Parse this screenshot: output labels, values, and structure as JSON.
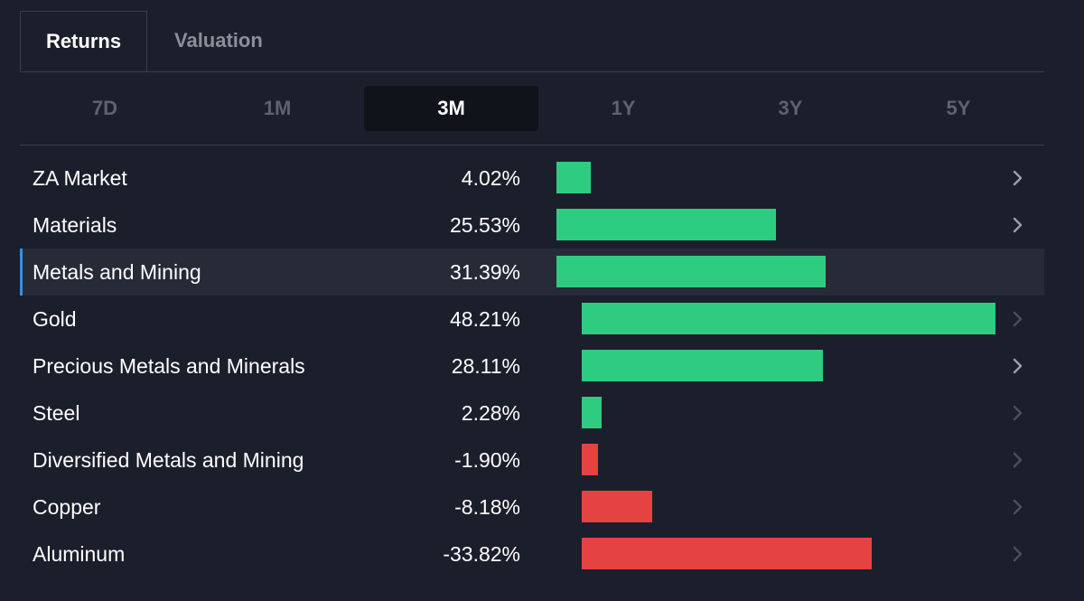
{
  "tabs": [
    {
      "label": "Returns",
      "active": true
    },
    {
      "label": "Valuation",
      "active": false
    }
  ],
  "periods": [
    {
      "label": "7D",
      "active": false
    },
    {
      "label": "1M",
      "active": false
    },
    {
      "label": "3M",
      "active": true
    },
    {
      "label": "1Y",
      "active": false
    },
    {
      "label": "3Y",
      "active": false
    },
    {
      "label": "5Y",
      "active": false
    }
  ],
  "colors": {
    "positive": "#2ecc80",
    "negative": "#e54242",
    "highlight_marker": "#3f8ed8",
    "chevron_bright": "#9aa0aa",
    "chevron_dim": "#4a4f5a"
  },
  "chart_data": {
    "type": "bar",
    "title": "",
    "categories": [
      "ZA Market",
      "Materials",
      "Metals and Mining",
      "Gold",
      "Precious Metals and Minerals",
      "Steel",
      "Diversified Metals and Mining",
      "Copper",
      "Aluminum"
    ],
    "values": [
      4.02,
      25.53,
      31.39,
      48.21,
      28.11,
      2.28,
      -1.9,
      -8.18,
      -33.82
    ],
    "value_labels": [
      "4.02%",
      "25.53%",
      "31.39%",
      "48.21%",
      "28.11%",
      "2.28%",
      "-1.90%",
      "-8.18%",
      "-33.82%"
    ],
    "level": [
      0,
      0,
      0,
      1,
      1,
      1,
      1,
      1,
      1
    ],
    "highlighted": [
      false,
      false,
      true,
      false,
      false,
      false,
      false,
      false,
      false
    ],
    "chevron": [
      "bright",
      "bright",
      "none",
      "dim",
      "bright",
      "dim",
      "dim",
      "dim",
      "dim"
    ]
  }
}
